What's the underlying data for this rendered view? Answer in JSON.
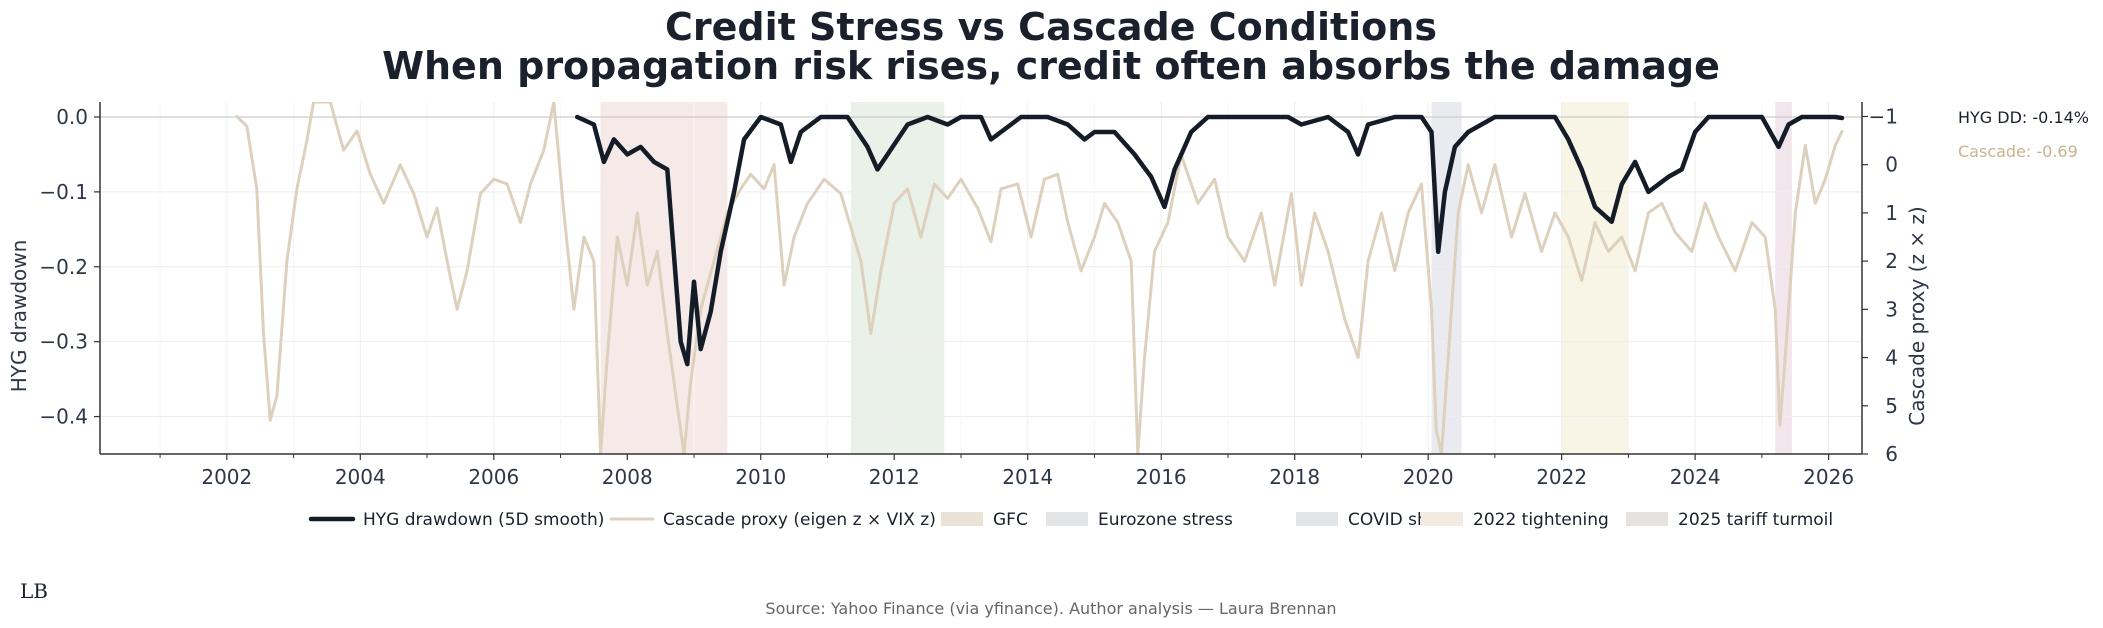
{
  "chart_data": {
    "type": "line",
    "title_line1": "Credit Stress vs Cascade Conditions",
    "title_line2": "When propagation risk rises, credit often absorbs the damage",
    "ylabel_left": "HYG drawdown",
    "ylabel_right": "Cascade proxy (z × z)",
    "xlim": [
      2000.1,
      2026.5
    ],
    "ylim_left": [
      -0.45,
      0.02
    ],
    "ylim_right": [
      6,
      -1.3
    ],
    "x_ticks": [
      2002,
      2004,
      2006,
      2008,
      2010,
      2012,
      2014,
      2016,
      2018,
      2020,
      2022,
      2024,
      2026
    ],
    "x_tick_labels": [
      "2002",
      "2004",
      "2006",
      "2008",
      "2010",
      "2012",
      "2014",
      "2016",
      "2018",
      "2020",
      "2022",
      "2024",
      "2026"
    ],
    "y_left_ticks": [
      0.0,
      -0.1,
      -0.2,
      -0.3,
      -0.4
    ],
    "y_left_tick_labels": [
      "0.0",
      "−0.1",
      "−0.2",
      "−0.3",
      "−0.4"
    ],
    "y_right_ticks": [
      -1,
      0,
      1,
      2,
      3,
      4,
      5,
      6
    ],
    "y_right_tick_labels": [
      "−1",
      "0",
      "1",
      "2",
      "3",
      "4",
      "5",
      "6"
    ],
    "grid": true,
    "legend_position": "bottom-center",
    "series": [
      {
        "name": "HYG drawdown (5D smooth)",
        "axis": "left",
        "color": "#141c27",
        "points": [
          [
            2007.25,
            0.0
          ],
          [
            2007.5,
            -0.01
          ],
          [
            2007.65,
            -0.06
          ],
          [
            2007.8,
            -0.03
          ],
          [
            2008.0,
            -0.05
          ],
          [
            2008.2,
            -0.04
          ],
          [
            2008.4,
            -0.06
          ],
          [
            2008.6,
            -0.07
          ],
          [
            2008.8,
            -0.3
          ],
          [
            2008.9,
            -0.33
          ],
          [
            2009.0,
            -0.22
          ],
          [
            2009.1,
            -0.31
          ],
          [
            2009.25,
            -0.26
          ],
          [
            2009.4,
            -0.18
          ],
          [
            2009.6,
            -0.1
          ],
          [
            2009.75,
            -0.03
          ],
          [
            2010.0,
            0.0
          ],
          [
            2010.3,
            -0.01
          ],
          [
            2010.45,
            -0.06
          ],
          [
            2010.6,
            -0.02
          ],
          [
            2010.9,
            0.0
          ],
          [
            2011.3,
            0.0
          ],
          [
            2011.6,
            -0.04
          ],
          [
            2011.75,
            -0.07
          ],
          [
            2011.9,
            -0.05
          ],
          [
            2012.2,
            -0.01
          ],
          [
            2012.5,
            0.0
          ],
          [
            2012.8,
            -0.01
          ],
          [
            2013.0,
            0.0
          ],
          [
            2013.3,
            0.0
          ],
          [
            2013.45,
            -0.03
          ],
          [
            2013.6,
            -0.02
          ],
          [
            2013.9,
            0.0
          ],
          [
            2014.3,
            0.0
          ],
          [
            2014.6,
            -0.01
          ],
          [
            2014.85,
            -0.03
          ],
          [
            2015.0,
            -0.02
          ],
          [
            2015.3,
            -0.02
          ],
          [
            2015.6,
            -0.05
          ],
          [
            2015.85,
            -0.08
          ],
          [
            2016.05,
            -0.12
          ],
          [
            2016.2,
            -0.07
          ],
          [
            2016.45,
            -0.02
          ],
          [
            2016.7,
            0.0
          ],
          [
            2017.0,
            0.0
          ],
          [
            2017.5,
            0.0
          ],
          [
            2017.9,
            0.0
          ],
          [
            2018.1,
            -0.01
          ],
          [
            2018.5,
            0.0
          ],
          [
            2018.8,
            -0.02
          ],
          [
            2018.95,
            -0.05
          ],
          [
            2019.1,
            -0.01
          ],
          [
            2019.5,
            0.0
          ],
          [
            2019.9,
            0.0
          ],
          [
            2020.05,
            -0.02
          ],
          [
            2020.15,
            -0.18
          ],
          [
            2020.25,
            -0.1
          ],
          [
            2020.4,
            -0.04
          ],
          [
            2020.6,
            -0.02
          ],
          [
            2021.0,
            0.0
          ],
          [
            2021.5,
            0.0
          ],
          [
            2021.9,
            0.0
          ],
          [
            2022.1,
            -0.03
          ],
          [
            2022.3,
            -0.07
          ],
          [
            2022.5,
            -0.12
          ],
          [
            2022.75,
            -0.14
          ],
          [
            2022.9,
            -0.09
          ],
          [
            2023.1,
            -0.06
          ],
          [
            2023.3,
            -0.1
          ],
          [
            2023.6,
            -0.08
          ],
          [
            2023.8,
            -0.07
          ],
          [
            2024.0,
            -0.02
          ],
          [
            2024.2,
            0.0
          ],
          [
            2024.6,
            0.0
          ],
          [
            2025.0,
            0.0
          ],
          [
            2025.25,
            -0.04
          ],
          [
            2025.4,
            -0.01
          ],
          [
            2025.6,
            0.0
          ],
          [
            2026.1,
            0.0
          ],
          [
            2026.2,
            -0.0014
          ]
        ]
      },
      {
        "name": "Cascade proxy (eigen z × VIX z)",
        "axis": "right",
        "color": "#ddd1bd",
        "points": [
          [
            2002.15,
            -1.0
          ],
          [
            2002.3,
            -0.8
          ],
          [
            2002.45,
            0.5
          ],
          [
            2002.55,
            3.5
          ],
          [
            2002.65,
            5.3
          ],
          [
            2002.75,
            4.8
          ],
          [
            2002.9,
            2.0
          ],
          [
            2003.05,
            0.5
          ],
          [
            2003.2,
            -0.5
          ],
          [
            2003.3,
            -1.3
          ],
          [
            2003.55,
            -1.3
          ],
          [
            2003.75,
            -0.3
          ],
          [
            2003.95,
            -0.7
          ],
          [
            2004.15,
            0.2
          ],
          [
            2004.35,
            0.8
          ],
          [
            2004.6,
            0.0
          ],
          [
            2004.8,
            0.6
          ],
          [
            2005.0,
            1.5
          ],
          [
            2005.15,
            0.9
          ],
          [
            2005.3,
            2.0
          ],
          [
            2005.45,
            3.0
          ],
          [
            2005.6,
            2.2
          ],
          [
            2005.8,
            0.6
          ],
          [
            2006.0,
            0.3
          ],
          [
            2006.2,
            0.4
          ],
          [
            2006.4,
            1.2
          ],
          [
            2006.55,
            0.4
          ],
          [
            2006.75,
            -0.3
          ],
          [
            2006.9,
            -1.3
          ],
          [
            2007.05,
            1.0
          ],
          [
            2007.2,
            3.0
          ],
          [
            2007.35,
            1.5
          ],
          [
            2007.5,
            2.0
          ],
          [
            2007.6,
            6.0
          ],
          [
            2007.7,
            4.0
          ],
          [
            2007.85,
            1.5
          ],
          [
            2008.0,
            2.5
          ],
          [
            2008.15,
            1.0
          ],
          [
            2008.3,
            2.5
          ],
          [
            2008.45,
            1.8
          ],
          [
            2008.6,
            3.5
          ],
          [
            2008.75,
            5.0
          ],
          [
            2008.85,
            6.0
          ],
          [
            2008.95,
            4.5
          ],
          [
            2009.1,
            3.0
          ],
          [
            2009.3,
            2.0
          ],
          [
            2009.5,
            1.0
          ],
          [
            2009.7,
            0.5
          ],
          [
            2009.85,
            0.2
          ],
          [
            2010.05,
            0.5
          ],
          [
            2010.2,
            0.0
          ],
          [
            2010.35,
            2.5
          ],
          [
            2010.5,
            1.5
          ],
          [
            2010.7,
            0.8
          ],
          [
            2010.95,
            0.3
          ],
          [
            2011.2,
            0.6
          ],
          [
            2011.5,
            2.0
          ],
          [
            2011.65,
            3.5
          ],
          [
            2011.8,
            2.2
          ],
          [
            2012.0,
            0.8
          ],
          [
            2012.2,
            0.5
          ],
          [
            2012.4,
            1.5
          ],
          [
            2012.6,
            0.4
          ],
          [
            2012.8,
            0.7
          ],
          [
            2013.0,
            0.3
          ],
          [
            2013.25,
            0.9
          ],
          [
            2013.45,
            1.6
          ],
          [
            2013.6,
            0.5
          ],
          [
            2013.85,
            0.4
          ],
          [
            2014.05,
            1.5
          ],
          [
            2014.25,
            0.3
          ],
          [
            2014.45,
            0.2
          ],
          [
            2014.6,
            1.2
          ],
          [
            2014.8,
            2.2
          ],
          [
            2015.0,
            1.5
          ],
          [
            2015.15,
            0.8
          ],
          [
            2015.35,
            1.2
          ],
          [
            2015.55,
            2.0
          ],
          [
            2015.65,
            6.0
          ],
          [
            2015.75,
            4.0
          ],
          [
            2015.9,
            1.8
          ],
          [
            2016.1,
            1.2
          ],
          [
            2016.3,
            -0.2
          ],
          [
            2016.55,
            0.8
          ],
          [
            2016.8,
            0.3
          ],
          [
            2017.0,
            1.5
          ],
          [
            2017.25,
            2.0
          ],
          [
            2017.5,
            1.0
          ],
          [
            2017.7,
            2.5
          ],
          [
            2017.95,
            0.6
          ],
          [
            2018.1,
            2.5
          ],
          [
            2018.3,
            1.0
          ],
          [
            2018.5,
            1.8
          ],
          [
            2018.75,
            3.2
          ],
          [
            2018.95,
            4.0
          ],
          [
            2019.1,
            2.0
          ],
          [
            2019.3,
            1.0
          ],
          [
            2019.5,
            2.2
          ],
          [
            2019.7,
            1.0
          ],
          [
            2019.9,
            0.4
          ],
          [
            2020.05,
            3.0
          ],
          [
            2020.12,
            5.5
          ],
          [
            2020.2,
            6.0
          ],
          [
            2020.3,
            4.0
          ],
          [
            2020.45,
            1.0
          ],
          [
            2020.6,
            0.0
          ],
          [
            2020.8,
            1.0
          ],
          [
            2021.0,
            0.0
          ],
          [
            2021.25,
            1.5
          ],
          [
            2021.45,
            0.6
          ],
          [
            2021.7,
            1.8
          ],
          [
            2021.9,
            1.0
          ],
          [
            2022.1,
            1.5
          ],
          [
            2022.3,
            2.4
          ],
          [
            2022.5,
            1.2
          ],
          [
            2022.7,
            1.8
          ],
          [
            2022.9,
            1.5
          ],
          [
            2023.1,
            2.2
          ],
          [
            2023.3,
            1.0
          ],
          [
            2023.5,
            0.8
          ],
          [
            2023.7,
            1.4
          ],
          [
            2023.95,
            1.8
          ],
          [
            2024.15,
            0.8
          ],
          [
            2024.35,
            1.5
          ],
          [
            2024.6,
            2.2
          ],
          [
            2024.85,
            1.2
          ],
          [
            2025.05,
            1.5
          ],
          [
            2025.2,
            3.0
          ],
          [
            2025.27,
            5.4
          ],
          [
            2025.35,
            4.0
          ],
          [
            2025.5,
            1.0
          ],
          [
            2025.65,
            -0.4
          ],
          [
            2025.8,
            0.8
          ],
          [
            2025.95,
            0.3
          ],
          [
            2026.1,
            -0.4
          ],
          [
            2026.2,
            -0.69
          ]
        ]
      }
    ],
    "shaded_regions": [
      {
        "name": "GFC",
        "start": 2007.6,
        "end": 2009.5,
        "color": "#f3e6e3"
      },
      {
        "name": "Eurozone stress",
        "start": 2011.35,
        "end": 2012.75,
        "color": "#e6efe4"
      },
      {
        "name": "COVID shock",
        "start": 2020.05,
        "end": 2020.5,
        "color": "#e6e8ef"
      },
      {
        "name": "2022 tightening",
        "start": 2022.0,
        "end": 2023.0,
        "color": "#f7f3e2"
      },
      {
        "name": "2025 tariff turmoil",
        "start": 2025.2,
        "end": 2025.45,
        "color": "#efe2e9"
      }
    ],
    "legend": [
      {
        "label": "HYG drawdown (5D smooth)",
        "kind": "line",
        "color": "#141c27"
      },
      {
        "label": "Cascade proxy (eigen z × VIX z)",
        "kind": "line",
        "color": "#ddd1bd"
      },
      {
        "label": "GFC",
        "kind": "patch",
        "color": "#ebe2d6"
      },
      {
        "label": "Eurozone stress",
        "kind": "patch",
        "color": "#e2e4e6"
      },
      {
        "label": "COVID shock",
        "kind": "patch",
        "color": "#e1e5e8"
      },
      {
        "label": "2022 tightening",
        "kind": "patch",
        "color": "#f3ebe2"
      },
      {
        "label": "2025 tariff turmoil",
        "kind": "patch",
        "color": "#e6e3de"
      }
    ],
    "annotations": {
      "hyg_last": "HYG DD: -0.14%",
      "cascade_last": "Cascade: -0.69"
    },
    "source": "Source: Yahoo Finance (via yfinance). Author analysis — Laura Brennan",
    "logo_text": "LB"
  }
}
